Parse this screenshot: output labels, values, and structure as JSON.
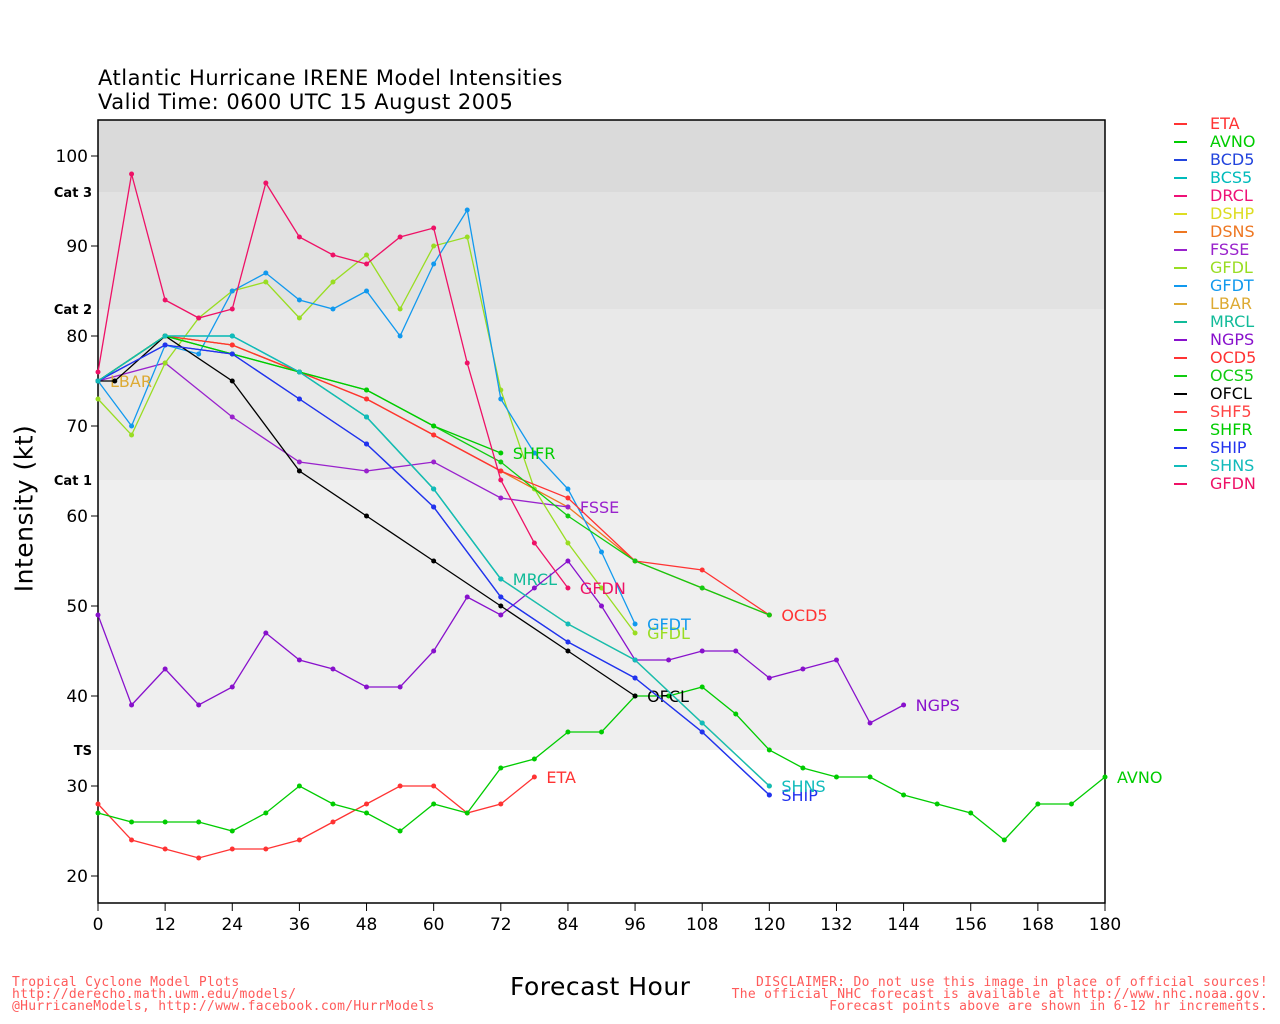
{
  "chart_data": {
    "type": "line",
    "title": "Atlantic Hurricane IRENE Model Intensities",
    "subtitle": "Valid Time: 0600 UTC 15 August 2005",
    "xlabel": "Forecast Hour",
    "ylabel": "Intensity (kt)",
    "xlim": [
      0,
      180
    ],
    "ylim": [
      17,
      104
    ],
    "xticks": [
      0,
      12,
      24,
      36,
      48,
      60,
      72,
      84,
      96,
      108,
      120,
      132,
      144,
      156,
      168,
      180
    ],
    "yticks": [
      20,
      30,
      40,
      50,
      60,
      70,
      80,
      90,
      100
    ],
    "bands": [
      {
        "label": "TS",
        "from": 34,
        "to": 64,
        "color": "#efefef"
      },
      {
        "label": "Cat 1",
        "from": 64,
        "to": 83,
        "color": "#e9e9e9"
      },
      {
        "label": "Cat 2",
        "from": 83,
        "to": 96,
        "color": "#e2e2e2"
      },
      {
        "label": "Cat 3",
        "from": 96,
        "to": 104,
        "color": "#dadada"
      }
    ],
    "legend_position": "right",
    "series": [
      {
        "name": "ETA",
        "color": "#ff3333",
        "end_label": "ETA",
        "x": [
          0,
          6,
          12,
          18,
          24,
          30,
          36,
          42,
          48,
          54,
          60,
          66,
          72,
          78
        ],
        "y": [
          28,
          24,
          23,
          22,
          23,
          23,
          24,
          26,
          28,
          30,
          30,
          27,
          28,
          31
        ]
      },
      {
        "name": "AVNO",
        "color": "#00cc00",
        "end_label": "AVNO",
        "x": [
          0,
          6,
          12,
          18,
          24,
          30,
          36,
          42,
          48,
          54,
          60,
          66,
          72,
          78,
          84,
          90,
          96,
          102,
          108,
          114,
          120,
          126,
          132,
          138,
          144,
          150,
          156,
          162,
          168,
          174,
          180
        ],
        "y": [
          27,
          26,
          26,
          26,
          25,
          27,
          30,
          28,
          27,
          25,
          28,
          27,
          32,
          33,
          36,
          36,
          40,
          40,
          41,
          38,
          34,
          32,
          31,
          31,
          29,
          28,
          27,
          24,
          28,
          28,
          31
        ]
      },
      {
        "name": "BCD5",
        "color": "#2244dd",
        "end_label": "",
        "x": [
          0,
          12,
          24,
          36,
          48,
          60,
          72,
          84,
          96,
          108,
          120
        ],
        "y": [
          75,
          79,
          78,
          73,
          68,
          61,
          51,
          46,
          42,
          36,
          29
        ]
      },
      {
        "name": "BCS5",
        "color": "#00bbbb",
        "end_label": "",
        "x": [
          0,
          12,
          24,
          36,
          48,
          60,
          72,
          84,
          96,
          108,
          120
        ],
        "y": [
          75,
          80,
          80,
          76,
          71,
          63,
          53,
          48,
          44,
          37,
          30
        ]
      },
      {
        "name": "DRCL",
        "color": "#ee1177",
        "end_label": "",
        "x": [],
        "y": []
      },
      {
        "name": "DSHP",
        "color": "#dddd22",
        "end_label": "",
        "x": [
          0,
          12,
          24,
          36,
          48,
          60,
          72,
          84,
          96,
          108,
          120
        ],
        "y": [
          75,
          80,
          79,
          76,
          71,
          63,
          53,
          48,
          44,
          37,
          30
        ]
      },
      {
        "name": "DSNS",
        "color": "#ee7722",
        "end_label": "",
        "x": [
          0,
          12,
          24,
          36,
          48,
          60,
          72,
          84,
          96,
          108,
          120
        ],
        "y": [
          75,
          80,
          79,
          76,
          73,
          69,
          65,
          61,
          55,
          52,
          49
        ]
      },
      {
        "name": "FSSE",
        "color": "#9922cc",
        "end_label": "FSSE",
        "x": [
          0,
          12,
          24,
          36,
          48,
          60,
          72,
          84
        ],
        "y": [
          75,
          77,
          71,
          66,
          65,
          66,
          62,
          61
        ]
      },
      {
        "name": "GFDL",
        "color": "#99dd22",
        "end_label": "GFDL",
        "x": [
          0,
          6,
          12,
          18,
          24,
          30,
          36,
          42,
          48,
          54,
          60,
          66,
          72,
          78,
          84,
          90,
          96
        ],
        "y": [
          73,
          69,
          77,
          82,
          85,
          86,
          82,
          86,
          89,
          83,
          90,
          91,
          74,
          63,
          57,
          52,
          47
        ]
      },
      {
        "name": "GFDT",
        "color": "#1199ee",
        "end_label": "GFDT",
        "x": [
          0,
          6,
          12,
          18,
          24,
          30,
          36,
          42,
          48,
          54,
          60,
          66,
          72,
          78,
          84,
          90,
          96
        ],
        "y": [
          75,
          70,
          79,
          78,
          85,
          87,
          84,
          83,
          85,
          80,
          88,
          94,
          73,
          67,
          63,
          56,
          48
        ]
      },
      {
        "name": "LBAR",
        "color": "#ddaa33",
        "end_label": "LBAR",
        "x": [
          0
        ],
        "y": [
          75
        ]
      },
      {
        "name": "MRCL",
        "color": "#11bb99",
        "end_label": "MRCL",
        "x": [
          0,
          12,
          24,
          36,
          48,
          60,
          72
        ],
        "y": [
          75,
          80,
          80,
          76,
          71,
          63,
          53
        ]
      },
      {
        "name": "NGPS",
        "color": "#8811cc",
        "end_label": "NGPS",
        "x": [
          0,
          6,
          12,
          18,
          24,
          30,
          36,
          42,
          48,
          54,
          60,
          66,
          72,
          78,
          84,
          90,
          96,
          102,
          108,
          114,
          120,
          126,
          132,
          138,
          144
        ],
        "y": [
          49,
          39,
          43,
          39,
          41,
          47,
          44,
          43,
          41,
          41,
          45,
          51,
          49,
          52,
          55,
          50,
          44,
          44,
          45,
          45,
          42,
          43,
          44,
          37,
          39
        ]
      },
      {
        "name": "OCD5",
        "color": "#ff3333",
        "end_label": "OCD5",
        "x": [
          0,
          12,
          24,
          36,
          48,
          60,
          72,
          84,
          96,
          108,
          120
        ],
        "y": [
          75,
          80,
          79,
          76,
          73,
          69,
          65,
          62,
          55,
          54,
          49
        ]
      },
      {
        "name": "OCS5",
        "color": "#11cc11",
        "end_label": "",
        "x": [
          0,
          12,
          24,
          36,
          48,
          60,
          72,
          84,
          96,
          108,
          120
        ],
        "y": [
          75,
          80,
          78,
          76,
          74,
          70,
          66,
          60,
          55,
          52,
          49
        ]
      },
      {
        "name": "OFCL",
        "color": "#000000",
        "end_label": "OFCL",
        "x": [
          0,
          3,
          12,
          24,
          36,
          48,
          60,
          72,
          84,
          96
        ],
        "y": [
          75,
          75,
          80,
          75,
          65,
          60,
          55,
          50,
          45,
          40
        ]
      },
      {
        "name": "SHF5",
        "color": "#ff4444",
        "end_label": "",
        "x": [],
        "y": []
      },
      {
        "name": "SHFR",
        "color": "#00cc00",
        "end_label": "SHFR",
        "x": [
          0,
          12,
          24,
          36,
          48,
          60,
          72
        ],
        "y": [
          75,
          80,
          78,
          76,
          74,
          70,
          67
        ]
      },
      {
        "name": "SHIP",
        "color": "#2233ee",
        "end_label": "SHIP",
        "x": [
          0,
          12,
          24,
          36,
          48,
          60,
          72,
          84,
          96,
          108,
          120
        ],
        "y": [
          75,
          79,
          78,
          73,
          68,
          61,
          51,
          46,
          42,
          36,
          29
        ]
      },
      {
        "name": "SHNS",
        "color": "#11bbbb",
        "end_label": "SHNS",
        "x": [
          0,
          12,
          24,
          36,
          48,
          60,
          72,
          84,
          96,
          108,
          120
        ],
        "y": [
          75,
          80,
          80,
          76,
          71,
          63,
          53,
          48,
          44,
          37,
          30
        ]
      },
      {
        "name": "GFDN",
        "color": "#ee1166",
        "end_label": "GFDN",
        "x": [
          0,
          6,
          12,
          18,
          24,
          30,
          36,
          42,
          48,
          54,
          60,
          66,
          72,
          78,
          84
        ],
        "y": [
          76,
          98,
          84,
          82,
          83,
          97,
          91,
          89,
          88,
          91,
          92,
          77,
          64,
          57,
          52
        ]
      }
    ]
  },
  "footer": {
    "left_line1": "Tropical Cyclone Model Plots",
    "left_line2": "http://derecho.math.uwm.edu/models/",
    "left_line3": "@HurricaneModels, http://www.facebook.com/HurrModels",
    "right_line1": "DISCLAIMER: Do not use this image in place of official sources!",
    "right_line2": "The official NHC forecast is available at http://www.nhc.noaa.gov.",
    "right_line3": "Forecast points above are shown in 6-12 hr increments."
  }
}
